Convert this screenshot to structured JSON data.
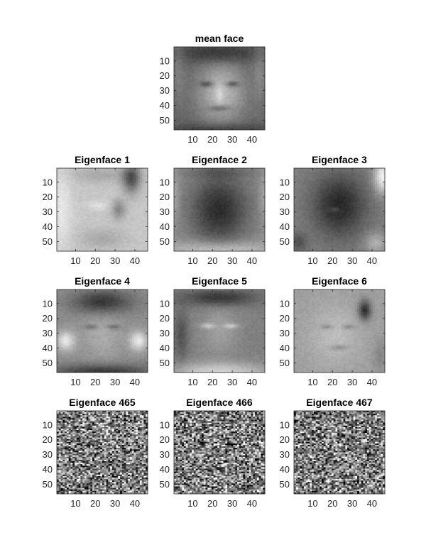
{
  "chart_data": [
    {
      "type": "heatmap",
      "title": "mean face",
      "colormap": "gray",
      "pattern": "mean",
      "image_size": [
        56,
        46
      ],
      "xticks": [
        10,
        20,
        30,
        40
      ],
      "yticks": [
        10,
        20,
        30,
        40,
        50
      ],
      "xlim": [
        0.5,
        46.5
      ],
      "ylim": [
        0.5,
        56.5
      ]
    },
    {
      "type": "heatmap",
      "title": "Eigenface 1",
      "colormap": "gray",
      "pattern": "eig1",
      "image_size": [
        56,
        46
      ],
      "xticks": [
        10,
        20,
        30,
        40
      ],
      "yticks": [
        10,
        20,
        30,
        40,
        50
      ],
      "xlim": [
        0.5,
        46.5
      ],
      "ylim": [
        0.5,
        56.5
      ]
    },
    {
      "type": "heatmap",
      "title": "Eigenface 2",
      "colormap": "gray",
      "pattern": "eig2",
      "image_size": [
        56,
        46
      ],
      "xticks": [
        10,
        20,
        30,
        40
      ],
      "yticks": [
        10,
        20,
        30,
        40,
        50
      ],
      "xlim": [
        0.5,
        46.5
      ],
      "ylim": [
        0.5,
        56.5
      ]
    },
    {
      "type": "heatmap",
      "title": "Eigenface 3",
      "colormap": "gray",
      "pattern": "eig3",
      "image_size": [
        56,
        46
      ],
      "xticks": [
        10,
        20,
        30,
        40
      ],
      "yticks": [
        10,
        20,
        30,
        40,
        50
      ],
      "xlim": [
        0.5,
        46.5
      ],
      "ylim": [
        0.5,
        56.5
      ]
    },
    {
      "type": "heatmap",
      "title": "Eigenface 4",
      "colormap": "gray",
      "pattern": "eig4",
      "image_size": [
        56,
        46
      ],
      "xticks": [
        10,
        20,
        30,
        40
      ],
      "yticks": [
        10,
        20,
        30,
        40,
        50
      ],
      "xlim": [
        0.5,
        46.5
      ],
      "ylim": [
        0.5,
        56.5
      ]
    },
    {
      "type": "heatmap",
      "title": "Eigenface 5",
      "colormap": "gray",
      "pattern": "eig5",
      "image_size": [
        56,
        46
      ],
      "xticks": [
        10,
        20,
        30,
        40
      ],
      "yticks": [
        10,
        20,
        30,
        40,
        50
      ],
      "xlim": [
        0.5,
        46.5
      ],
      "ylim": [
        0.5,
        56.5
      ]
    },
    {
      "type": "heatmap",
      "title": "Eigenface 6",
      "colormap": "gray",
      "pattern": "eig6",
      "image_size": [
        56,
        46
      ],
      "xticks": [
        10,
        20,
        30,
        40
      ],
      "yticks": [
        10,
        20,
        30,
        40,
        50
      ],
      "xlim": [
        0.5,
        46.5
      ],
      "ylim": [
        0.5,
        56.5
      ]
    },
    {
      "type": "heatmap",
      "title": "Eigenface 465",
      "colormap": "gray",
      "pattern": "noise",
      "image_size": [
        56,
        46
      ],
      "xticks": [
        10,
        20,
        30,
        40
      ],
      "yticks": [
        10,
        20,
        30,
        40,
        50
      ],
      "xlim": [
        0.5,
        46.5
      ],
      "ylim": [
        0.5,
        56.5
      ]
    },
    {
      "type": "heatmap",
      "title": "Eigenface 466",
      "colormap": "gray",
      "pattern": "noise",
      "image_size": [
        56,
        46
      ],
      "xticks": [
        10,
        20,
        30,
        40
      ],
      "yticks": [
        10,
        20,
        30,
        40,
        50
      ],
      "xlim": [
        0.5,
        46.5
      ],
      "ylim": [
        0.5,
        56.5
      ]
    },
    {
      "type": "heatmap",
      "title": "Eigenface 467",
      "colormap": "gray",
      "pattern": "noise",
      "image_size": [
        56,
        46
      ],
      "xticks": [
        10,
        20,
        30,
        40
      ],
      "yticks": [
        10,
        20,
        30,
        40,
        50
      ],
      "xlim": [
        0.5,
        46.5
      ],
      "ylim": [
        0.5,
        56.5
      ]
    }
  ]
}
